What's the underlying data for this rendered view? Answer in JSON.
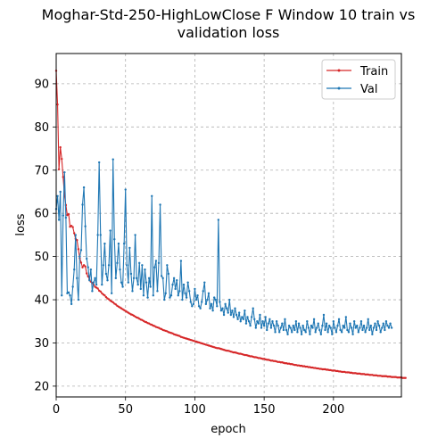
{
  "chart_data": {
    "type": "line",
    "title_lines": [
      "Moghar-Std-250-HighLowClose F Window 10 train vs",
      "validation loss"
    ],
    "xlabel": "epoch",
    "ylabel": "loss",
    "xlim": [
      0,
      249
    ],
    "ylim": [
      17.5,
      97
    ],
    "xticks": [
      0,
      50,
      100,
      150,
      200
    ],
    "yticks": [
      20,
      30,
      40,
      50,
      60,
      70,
      80,
      90
    ],
    "grid": true,
    "legend_position": "top-right",
    "series": [
      {
        "name": "Train",
        "color": "#d62728",
        "values": [
          93.0,
          85.2,
          70.2,
          75.3,
          72.6,
          68.4,
          64.1,
          61.9,
          59.6,
          59.8,
          56.9,
          57.1,
          56.8,
          55.4,
          54.1,
          53.8,
          51.7,
          49.6,
          48.6,
          47.5,
          48.0,
          47.7,
          46.1,
          45.4,
          44.7,
          44.2,
          43.9,
          43.5,
          43.0,
          42.8,
          42.6,
          42.1,
          41.9,
          41.5,
          41.2,
          41.0,
          40.6,
          40.3,
          40.1,
          39.8,
          39.6,
          39.4,
          39.1,
          38.9,
          38.6,
          38.4,
          38.2,
          38.0,
          37.8,
          37.6,
          37.4,
          37.2,
          37.0,
          36.8,
          36.6,
          36.5,
          36.3,
          36.1,
          35.9,
          35.8,
          35.6,
          35.4,
          35.3,
          35.1,
          34.9,
          34.8,
          34.6,
          34.5,
          34.3,
          34.2,
          34.0,
          33.9,
          33.7,
          33.6,
          33.5,
          33.3,
          33.2,
          33.0,
          32.9,
          32.8,
          32.7,
          32.5,
          32.4,
          32.3,
          32.2,
          32.0,
          31.9,
          31.8,
          31.7,
          31.6,
          31.4,
          31.3,
          31.2,
          31.1,
          31.0,
          30.9,
          30.8,
          30.7,
          30.6,
          30.5,
          30.4,
          30.3,
          30.2,
          30.1,
          30.0,
          29.9,
          29.8,
          29.7,
          29.6,
          29.5,
          29.4,
          29.3,
          29.2,
          29.1,
          29.0,
          28.9,
          28.8,
          28.8,
          28.7,
          28.6,
          28.5,
          28.4,
          28.3,
          28.2,
          28.2,
          28.1,
          28.0,
          27.9,
          27.8,
          27.8,
          27.7,
          27.6,
          27.5,
          27.5,
          27.4,
          27.3,
          27.2,
          27.2,
          27.1,
          27.0,
          26.9,
          26.9,
          26.8,
          26.7,
          26.7,
          26.6,
          26.5,
          26.5,
          26.4,
          26.3,
          26.3,
          26.2,
          26.1,
          26.1,
          26.0,
          25.9,
          25.9,
          25.8,
          25.8,
          25.7,
          25.6,
          25.6,
          25.5,
          25.5,
          25.4,
          25.3,
          25.3,
          25.2,
          25.2,
          25.1,
          25.1,
          25.0,
          24.9,
          24.9,
          24.8,
          24.8,
          24.7,
          24.7,
          24.6,
          24.6,
          24.5,
          24.5,
          24.4,
          24.4,
          24.3,
          24.3,
          24.2,
          24.2,
          24.1,
          24.1,
          24.0,
          24.0,
          23.9,
          23.9,
          23.9,
          23.8,
          23.8,
          23.7,
          23.7,
          23.6,
          23.6,
          23.6,
          23.5,
          23.5,
          23.4,
          23.4,
          23.3,
          23.3,
          23.3,
          23.2,
          23.2,
          23.2,
          23.1,
          23.1,
          23.0,
          23.0,
          23.0,
          22.9,
          22.9,
          22.9,
          22.8,
          22.8,
          22.8,
          22.7,
          22.7,
          22.7,
          22.6,
          22.6,
          22.6,
          22.5,
          22.5,
          22.5,
          22.4,
          22.4,
          22.4,
          22.3,
          22.3,
          22.3,
          22.3,
          22.2,
          22.2,
          22.2,
          22.1,
          22.1,
          22.1,
          22.1,
          22.0,
          22.0,
          22.0,
          22.0,
          21.9,
          21.9,
          21.9
        ]
      },
      {
        "name": "Val",
        "color": "#1f77b4",
        "values": [
          61.0,
          64.0,
          58.5,
          65.0,
          41.0,
          59.5,
          69.5,
          59.0,
          41.5,
          41.7,
          41.0,
          39.0,
          43.0,
          47.0,
          55.0,
          45.0,
          40.0,
          50.0,
          51.5,
          62.0,
          66.0,
          57.0,
          49.5,
          47.5,
          44.5,
          47.0,
          42.0,
          44.0,
          45.0,
          43.5,
          55.0,
          71.8,
          55.0,
          43.5,
          48.0,
          53.0,
          46.0,
          44.5,
          48.0,
          56.0,
          41.5,
          72.5,
          54.0,
          45.0,
          48.5,
          53.0,
          47.0,
          44.0,
          43.0,
          53.0,
          65.5,
          48.0,
          44.0,
          52.0,
          46.0,
          42.0,
          45.0,
          55.0,
          45.0,
          43.5,
          48.5,
          42.5,
          48.0,
          41.0,
          47.0,
          44.0,
          40.5,
          45.0,
          43.0,
          64.0,
          41.0,
          47.5,
          49.0,
          42.0,
          48.5,
          62.0,
          45.5,
          45.0,
          40.0,
          41.5,
          48.0,
          46.0,
          40.5,
          41.0,
          43.5,
          45.0,
          42.5,
          44.5,
          41.0,
          42.0,
          49.0,
          40.0,
          43.5,
          41.5,
          40.5,
          44.0,
          42.0,
          39.5,
          38.5,
          39.0,
          42.5,
          40.0,
          41.0,
          38.5,
          38.0,
          39.5,
          42.0,
          44.0,
          39.0,
          40.0,
          41.5,
          38.0,
          39.0,
          37.5,
          40.5,
          40.0,
          38.5,
          58.5,
          39.5,
          37.5,
          38.0,
          36.5,
          39.0,
          38.0,
          37.0,
          40.0,
          36.5,
          37.5,
          36.0,
          38.0,
          36.5,
          35.5,
          37.0,
          35.0,
          36.0,
          35.5,
          37.5,
          34.5,
          36.0,
          35.0,
          34.0,
          36.0,
          38.0,
          35.5,
          33.5,
          35.0,
          34.5,
          36.5,
          33.5,
          35.0,
          34.0,
          36.0,
          33.0,
          34.5,
          35.5,
          33.5,
          35.0,
          34.0,
          32.5,
          35.0,
          34.0,
          32.5,
          33.5,
          34.5,
          33.0,
          35.5,
          33.0,
          32.0,
          34.0,
          33.5,
          32.5,
          34.0,
          33.0,
          35.0,
          32.5,
          34.5,
          33.5,
          32.0,
          34.0,
          33.0,
          32.5,
          35.0,
          33.5,
          32.0,
          34.0,
          33.5,
          35.5,
          32.5,
          33.5,
          34.5,
          33.0,
          32.0,
          34.0,
          36.5,
          33.0,
          34.5,
          32.5,
          34.0,
          33.5,
          32.0,
          35.0,
          33.5,
          32.5,
          34.0,
          35.5,
          33.0,
          32.5,
          34.0,
          33.5,
          36.0,
          33.0,
          32.5,
          34.5,
          33.5,
          32.0,
          35.0,
          33.5,
          34.0,
          32.5,
          33.5,
          35.0,
          33.0,
          34.0,
          32.5,
          33.5,
          35.5,
          33.0,
          34.0,
          32.0,
          33.5,
          34.5,
          33.0,
          35.0,
          34.0,
          32.5,
          33.5,
          34.5,
          33.0,
          35.0,
          34.0,
          33.5,
          34.5,
          33.5
        ]
      }
    ]
  }
}
